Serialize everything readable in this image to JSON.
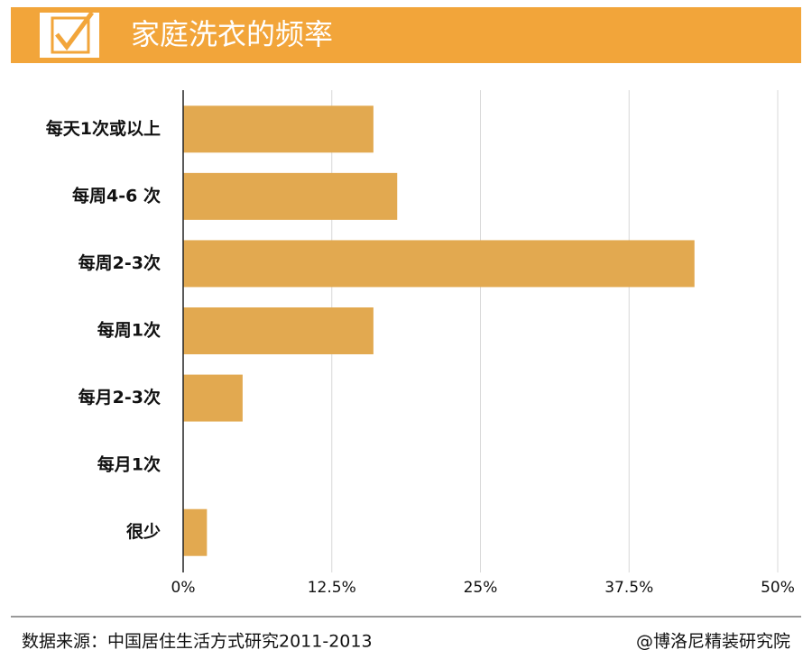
{
  "chart_data": {
    "type": "bar",
    "orientation": "horizontal",
    "title": "家庭洗衣的频率",
    "categories": [
      "每天1次或以上",
      "每周4-6 次",
      "每周2-3次",
      "每周1次",
      "每月2-3次",
      "每月1次",
      "很少"
    ],
    "values": [
      16,
      18,
      43,
      16,
      5,
      0,
      2
    ],
    "color": "#e2a950",
    "xlim": [
      0,
      50
    ],
    "xticks": [
      {
        "value": 0,
        "label": "0%"
      },
      {
        "value": 12.5,
        "label": "12.5%"
      },
      {
        "value": 25,
        "label": "25%"
      },
      {
        "value": 37.5,
        "label": "37.5%"
      },
      {
        "value": 50,
        "label": "50%"
      }
    ],
    "grid": true,
    "source": "数据来源：中国居住生活方式研究2011-2013",
    "credit": "@博洛尼精装研究院"
  }
}
